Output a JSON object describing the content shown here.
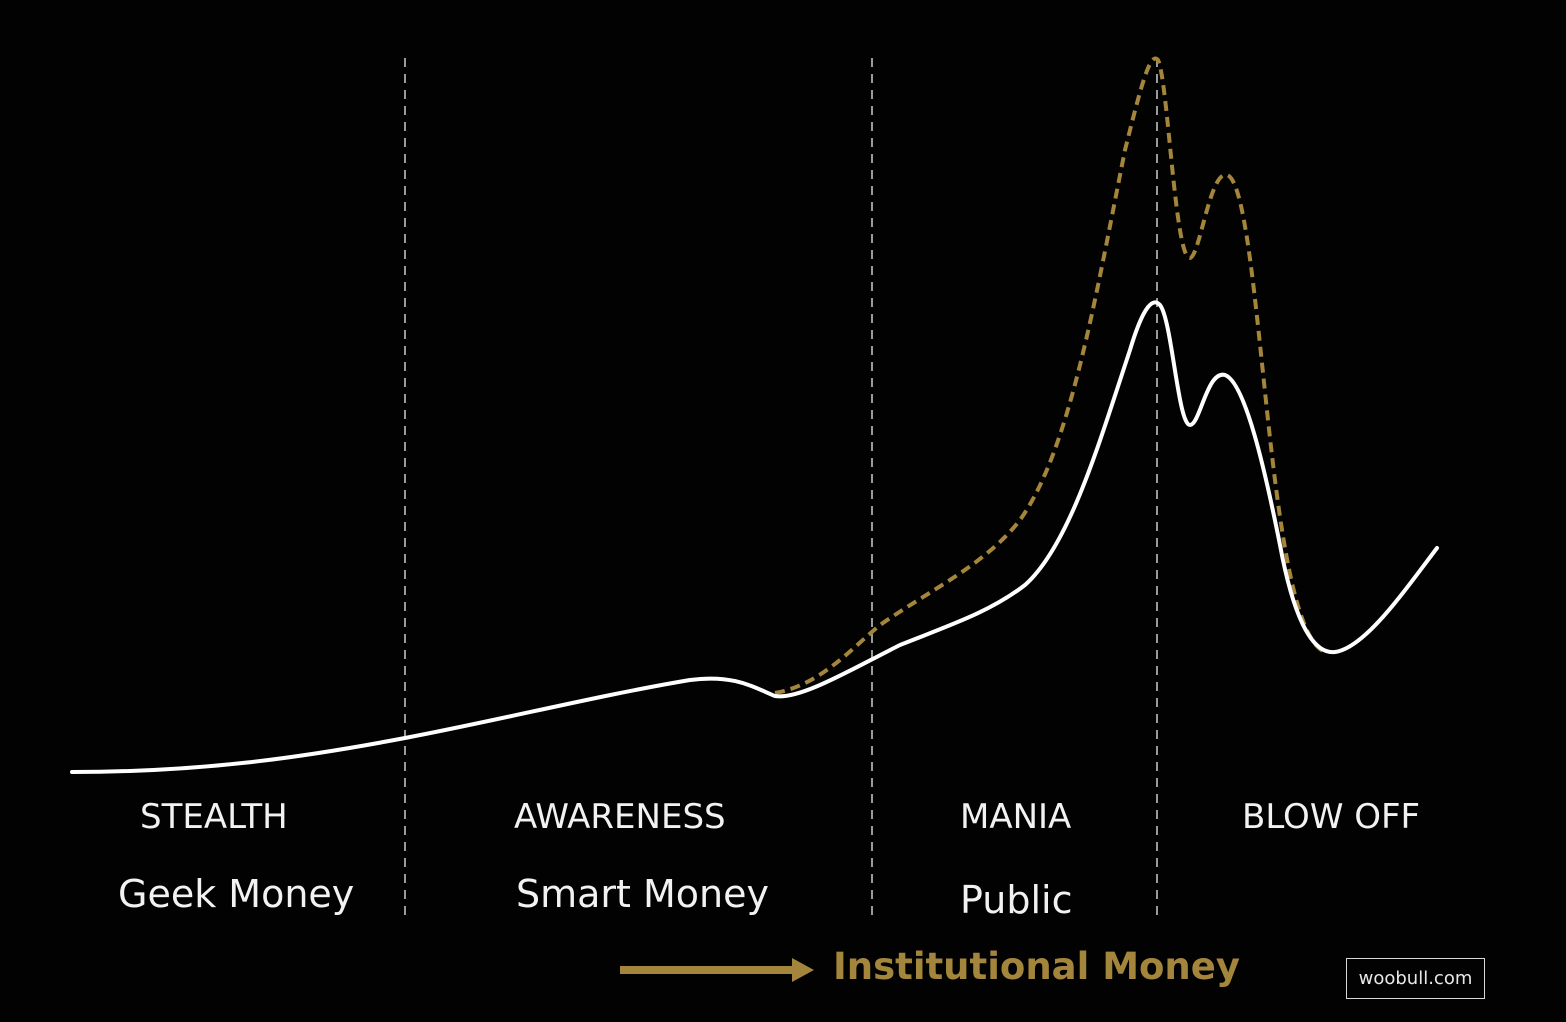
{
  "colors": {
    "background": "#020202",
    "price_line": "#ffffff",
    "institutional_line": "#a4853c",
    "divider": "#9a9a9a",
    "text": "#f2f2f2"
  },
  "phases": [
    {
      "name": "STEALTH",
      "participants": "Geek Money"
    },
    {
      "name": "AWARENESS",
      "participants": "Smart Money"
    },
    {
      "name": "MANIA",
      "participants": "Public"
    },
    {
      "name": "BLOW OFF",
      "participants": ""
    }
  ],
  "institutional": {
    "label": "Institutional Money",
    "arrow_icon": "right-arrow-icon"
  },
  "watermark": "woobull.com",
  "curves": {
    "price": "solid white line rising slowly, then sharply, double peak, crash, partial recovery",
    "institutional": "dashed gold line branching above price line from late awareness, higher double peak, rejoining at the bottom"
  }
}
